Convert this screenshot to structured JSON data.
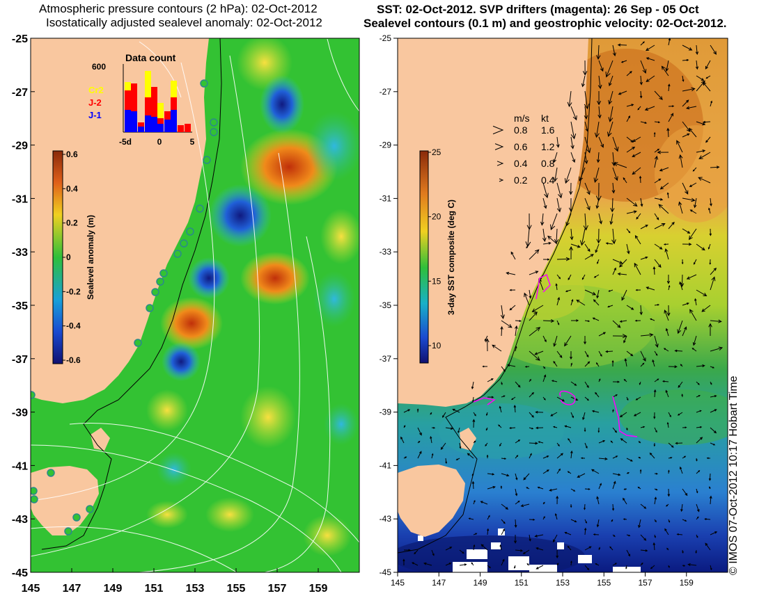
{
  "left_panel": {
    "title_line1": "Atmospheric pressure contours (2 hPa): 02-Oct-2012",
    "title_line2": "Isostatically adjusted sealevel anomaly: 02-Oct-2012",
    "y_ticks": [
      "-25",
      "-27",
      "-29",
      "-31",
      "-33",
      "-35",
      "-37",
      "-39",
      "-41",
      "-43",
      "-45"
    ],
    "x_ticks": [
      "145",
      "147",
      "149",
      "151",
      "153",
      "155",
      "157",
      "159"
    ],
    "colorbar": {
      "label": "Sealevel anomaly (m)",
      "ticks": [
        "0.6",
        "0.4",
        "0.2",
        "0",
        "-0.2",
        "-0.4",
        "-0.6"
      ]
    },
    "inset": {
      "title": "Data count",
      "y_label": "600",
      "x_ticks": [
        "-5d",
        "0",
        "5"
      ],
      "legend": [
        {
          "label": "Cr2",
          "color": "#ffff00"
        },
        {
          "label": "J-2",
          "color": "#ff0000"
        },
        {
          "label": "J-1",
          "color": "#0000ff"
        }
      ]
    }
  },
  "right_panel": {
    "title_line1": "SST: 02-Oct-2012. SVP drifters (magenta): 26 Sep - 05 Oct",
    "title_line2": "Sealevel contours (0.1 m) and geostrophic velocity: 02-Oct-2012.",
    "y_ticks": [
      "-25",
      "-27",
      "-29",
      "-31",
      "-33",
      "-35",
      "-37",
      "-39",
      "-41",
      "-43",
      "-45"
    ],
    "x_ticks": [
      "145",
      "147",
      "149",
      "151",
      "153",
      "155",
      "157",
      "159"
    ],
    "colorbar": {
      "label": "3-day SST composite (deg C)",
      "ticks": [
        "25",
        "20",
        "15",
        "10"
      ]
    },
    "velocity_legend": {
      "header_ms": "m/s",
      "header_kt": "kt",
      "rows": [
        {
          "ms": "0.8",
          "kt": "1.6"
        },
        {
          "ms": "0.6",
          "kt": "1.2"
        },
        {
          "ms": "0.4",
          "kt": "0.8"
        },
        {
          "ms": "0.2",
          "kt": "0.4"
        }
      ]
    }
  },
  "copyright": "© IMOS 07-Oct-2012 10:17 Hobart Time",
  "colors": {
    "land": "#f9c79f",
    "ocean_left": "#33c233",
    "ocean_right_warm": "#e8a040",
    "ocean_right_cold": "#1a5fc8",
    "drifter": "#ff00ff"
  }
}
